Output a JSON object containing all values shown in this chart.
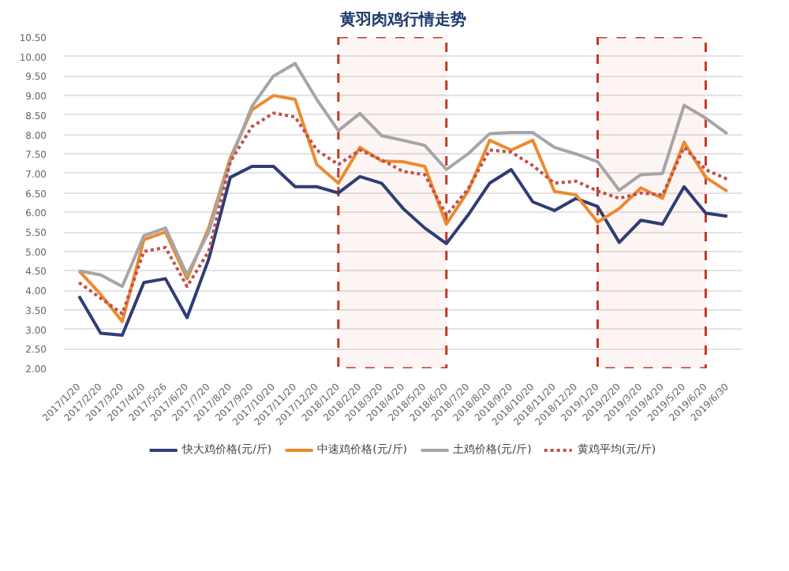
{
  "chart_data": {
    "type": "line",
    "title": "黄羽肉鸡行情走势",
    "categories": [
      "2017/1/20",
      "2017/2/20",
      "2017/3/20",
      "2017/4/20",
      "2017/5/26",
      "2017/6/20",
      "2017/7/20",
      "2017/8/20",
      "2017/9/20",
      "2017/10/20",
      "2017/11/20",
      "2017/12/20",
      "2018/1/20",
      "2018/2/20",
      "2018/3/20",
      "2018/4/20",
      "2018/5/20",
      "2018/6/20",
      "2018/7/20",
      "2018/8/20",
      "2018/9/20",
      "2018/10/20",
      "2018/11/20",
      "2018/12/20",
      "2019/1/20",
      "2019/2/20",
      "2019/3/20",
      "2019/4/20",
      "2019/5/20",
      "2019/6/20",
      "2019/6/30"
    ],
    "series": [
      {
        "name": "快大鸡价格(元/斤)",
        "color": "#2f3d73",
        "line_style": "solid",
        "values": [
          3.85,
          2.9,
          2.85,
          4.2,
          4.3,
          3.3,
          4.8,
          6.9,
          7.18,
          7.18,
          6.66,
          6.66,
          6.5,
          6.92,
          6.75,
          6.1,
          5.6,
          5.2,
          5.93,
          6.75,
          7.1,
          6.27,
          6.05,
          6.36,
          6.15,
          5.23,
          5.8,
          5.7,
          6.66,
          5.98,
          5.9
        ]
      },
      {
        "name": "中速鸡价格(元/斤)",
        "color": "#ed8a2e",
        "line_style": "solid",
        "values": [
          4.5,
          3.9,
          3.2,
          5.3,
          5.5,
          4.3,
          5.6,
          7.4,
          8.63,
          9.0,
          8.9,
          7.23,
          6.75,
          7.67,
          7.32,
          7.3,
          7.18,
          5.7,
          6.54,
          7.85,
          7.6,
          7.85,
          6.54,
          6.45,
          5.75,
          6.1,
          6.63,
          6.36,
          7.8,
          6.9,
          6.54
        ]
      },
      {
        "name": "土鸡价格(元/斤)",
        "color": "#a6a6a6",
        "line_style": "solid",
        "values": [
          4.5,
          4.4,
          4.1,
          5.4,
          5.6,
          4.4,
          5.5,
          7.32,
          8.72,
          9.5,
          9.82,
          8.9,
          8.1,
          8.54,
          7.97,
          7.85,
          7.72,
          7.1,
          7.5,
          8.02,
          8.05,
          8.05,
          7.67,
          7.5,
          7.3,
          6.57,
          6.97,
          7.0,
          8.75,
          8.42,
          8.02
        ]
      },
      {
        "name": "黄鸡平均(元/斤)",
        "color": "#c0504d",
        "line_style": "dotted",
        "values": [
          4.2,
          3.8,
          3.4,
          5.0,
          5.1,
          4.1,
          5.0,
          7.3,
          8.2,
          8.55,
          8.45,
          7.6,
          7.23,
          7.6,
          7.35,
          7.05,
          6.97,
          5.93,
          6.6,
          7.6,
          7.55,
          7.2,
          6.75,
          6.8,
          6.55,
          6.36,
          6.5,
          6.45,
          7.67,
          7.1,
          6.85
        ]
      }
    ],
    "ylim": [
      2.0,
      10.5
    ],
    "yticks": [
      {
        "value": 2.0,
        "label": "2.00"
      },
      {
        "value": 2.5,
        "label": "2.50"
      },
      {
        "value": 3.0,
        "label": "3.00"
      },
      {
        "value": 3.5,
        "label": "3.50"
      },
      {
        "value": 4.0,
        "label": "4.00"
      },
      {
        "value": 4.5,
        "label": "4.50"
      },
      {
        "value": 5.0,
        "label": "5.00"
      },
      {
        "value": 5.5,
        "label": "5.50"
      },
      {
        "value": 6.0,
        "label": "6.00"
      },
      {
        "value": 6.5,
        "label": "6.50"
      },
      {
        "value": 7.0,
        "label": "7.00"
      },
      {
        "value": 7.5,
        "label": "7.50"
      },
      {
        "value": 8.0,
        "label": "8.00"
      },
      {
        "value": 8.5,
        "label": "8.50"
      },
      {
        "value": 9.0,
        "label": "9.00"
      },
      {
        "value": 9.5,
        "label": "9.50"
      },
      {
        "value": 10.0,
        "label": "10.00"
      },
      {
        "value": 10.5,
        "label": "10.50"
      }
    ],
    "grid": "y",
    "legend": "bottom",
    "marker": "none",
    "bands": [
      {
        "axis": "x",
        "from": "2018/1/20",
        "to": "2018/6/20",
        "color": "#c0392b"
      },
      {
        "axis": "x",
        "from": "2019/1/20",
        "to": "2019/6/20",
        "color": "#c0392b"
      }
    ]
  }
}
